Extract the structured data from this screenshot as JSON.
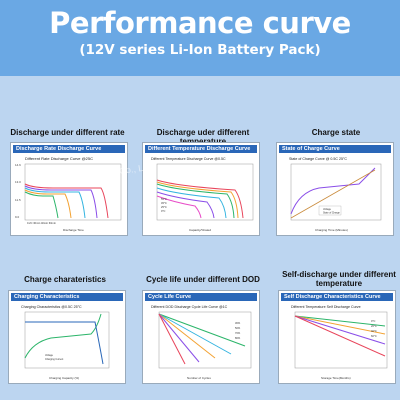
{
  "header": {
    "title": "Performance curve",
    "subtitle": "(12V series Li-Ion Battery Pack)"
  },
  "captions": [
    "Discharge under different rate",
    "Discharge uder different temperature",
    "Charge state",
    "Charge charateristics",
    "Cycle life under different DOD",
    "Self-discharge under different temperature"
  ],
  "watermark": "ChangZhou ... Co., Ltd.",
  "chart_data": [
    {
      "type": "line",
      "panel_title": "Discharge Rate Discharge Curve",
      "title": "Different Rate Discharge Curve @25C",
      "xlabel": "Discharge Time",
      "ylabel": "Voltage",
      "y_ticks": [
        "14.6",
        "14.0",
        "13.5",
        "13.0",
        "12.5",
        "12.0",
        "11.5",
        "11.0",
        "10.5",
        "10.0",
        "9.5",
        "9.0"
      ],
      "x_ticks": [
        "0",
        "10",
        "20",
        "30",
        "40",
        "50",
        "60",
        "70",
        "80",
        "90",
        "100"
      ],
      "ylim": [
        9.0,
        14.6
      ],
      "legend": "0.2C  30min 40min 60min"
    },
    {
      "type": "line",
      "panel_title": "Different Temperature Discharge Curve",
      "title": "Different Temperature Discharge Curve @0.5C",
      "xlabel": "Capacity/%rated",
      "ylabel": "Voltage",
      "x_ticks": [
        "0",
        "10",
        "20",
        "30",
        "40",
        "50",
        "60",
        "70",
        "80",
        "90",
        "100",
        "110"
      ],
      "y_ticks": [
        "14.6",
        "14.0",
        "13.5",
        "13.0",
        "12.5",
        "12.0",
        "11.5",
        "11.0",
        "10.5",
        "10.0",
        "9.5",
        "9.0"
      ],
      "series": [
        {
          "name": "55°C"
        },
        {
          "name": "45°C"
        },
        {
          "name": "25°C"
        },
        {
          "name": "0°C"
        },
        {
          "name": "-10°C"
        },
        {
          "name": "-20°C"
        }
      ]
    },
    {
      "type": "line",
      "panel_title": "State of Charge Curve",
      "title": "State of Charge Curve @ 0.5C 25°C",
      "xlabel": "Charging Time (Minutes)",
      "ylabel": "Voltage",
      "y_ticks": [
        "15.0",
        "14.6",
        "14.0",
        "13.5",
        "13.0",
        "12.5",
        "12.0"
      ],
      "series": [
        {
          "name": "Voltage"
        },
        {
          "name": "State of Charge"
        }
      ]
    },
    {
      "type": "line",
      "panel_title": "Charging Characteristics",
      "title": "Charging Characteristics @0.5C 25°C",
      "xlabel": "Charging Capacity (%)",
      "ylabel": "Voltage (V)",
      "y2label": "Current/A",
      "x_ticks": [
        "0",
        "20",
        "40",
        "60",
        "80",
        "100"
      ],
      "y_ticks": [
        "14.8",
        "14.4",
        "14.0",
        "13.6",
        "13.2",
        "12.8",
        "12.4",
        "12.0",
        "11.6",
        "11.2"
      ],
      "series": [
        {
          "name": "Voltage"
        },
        {
          "name": "Charging Current"
        }
      ]
    },
    {
      "type": "line",
      "panel_title": "Cycle Life Curve",
      "title": "Different DOD Discharge Cycle Life Curve @1C",
      "xlabel": "Number of Cycles",
      "ylabel": "Remaining Capacity (%)",
      "y_ticks": [
        "100",
        "95",
        "90",
        "85",
        "80",
        "75",
        "70",
        "65",
        "60"
      ],
      "x_ticks": [
        "0",
        "1000",
        "2000",
        "3000",
        "4000",
        "5000",
        "6000",
        "7000",
        "8000"
      ],
      "series": [
        {
          "name": "30%"
        },
        {
          "name": "50%"
        },
        {
          "name": "70%"
        },
        {
          "name": "80%"
        },
        {
          "name": "100%"
        }
      ]
    },
    {
      "type": "line",
      "panel_title": "Self Discharge Characteristics Curve",
      "title": "Different Temperature Self Discharge Curve",
      "xlabel": "Storage Time(Months)",
      "ylabel": "Remaining Capacity (%)",
      "y_ticks": [
        "100",
        "95",
        "90",
        "85",
        "80",
        "75",
        "70",
        "65"
      ],
      "x_ticks": [
        "0",
        "1",
        "2",
        "3",
        "4",
        "5",
        "6",
        "7",
        "8",
        "9",
        "10",
        "11",
        "12"
      ],
      "series": [
        {
          "name": "0°C"
        },
        {
          "name": "20°C"
        },
        {
          "name": "40°C"
        },
        {
          "name": "60°C"
        }
      ]
    }
  ],
  "colors": {
    "background": "#6aa8e4",
    "band": "#bcd5f0",
    "panel_header": "#2a67b8"
  }
}
